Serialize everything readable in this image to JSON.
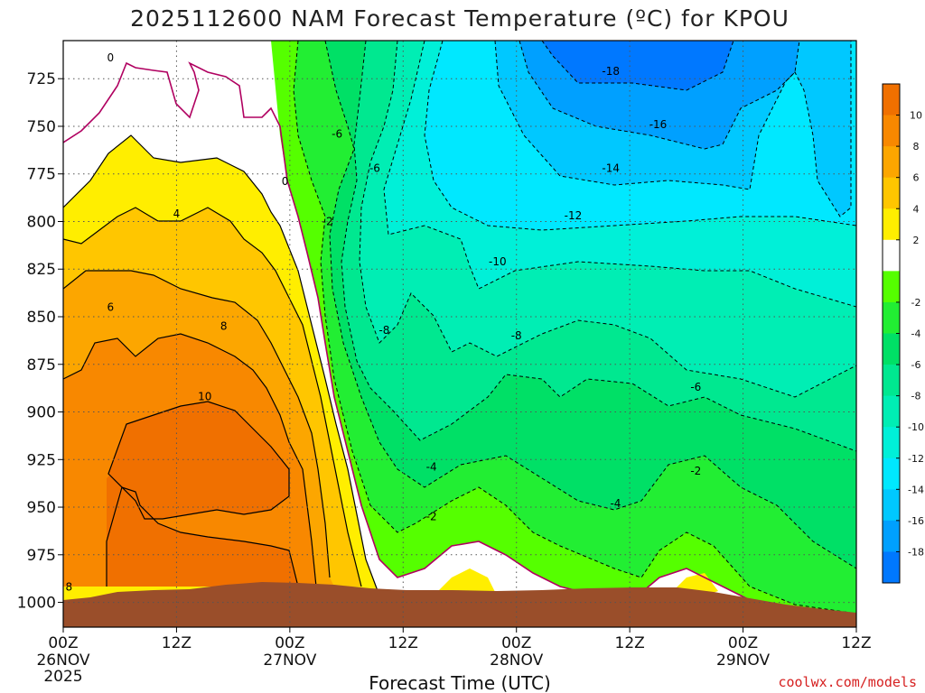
{
  "title": "2025112600 NAM Forecast Temperature (ºC) for KPOU",
  "credit": "coolwx.com/models",
  "colors": {
    "credit": "#d62020",
    "ground": "#9a4e2a",
    "zero_contour": "#b00060"
  },
  "chart_data": {
    "type": "heatmap",
    "title": "2025112600 NAM Forecast Temperature (ºC) for KPOU",
    "xlabel": "Forecast Time (UTC)",
    "ylabel": "",
    "x_ticks": [
      {
        "label": "00Z",
        "sub1": "26NOV",
        "sub2": "2025"
      },
      {
        "label": "12Z",
        "sub1": "",
        "sub2": ""
      },
      {
        "label": "00Z",
        "sub1": "27NOV",
        "sub2": ""
      },
      {
        "label": "12Z",
        "sub1": "",
        "sub2": ""
      },
      {
        "label": "00Z",
        "sub1": "28NOV",
        "sub2": ""
      },
      {
        "label": "12Z",
        "sub1": "",
        "sub2": ""
      },
      {
        "label": "00Z",
        "sub1": "29NOV",
        "sub2": ""
      },
      {
        "label": "12Z",
        "sub1": "",
        "sub2": ""
      }
    ],
    "y_ticks": [
      "725",
      "750",
      "775",
      "800",
      "825",
      "850",
      "875",
      "900",
      "925",
      "950",
      "975",
      "1000"
    ],
    "ylim": [
      1013,
      705
    ],
    "grid": true,
    "colorbar": {
      "levels": [
        {
          "label": "10",
          "color": "#f07000"
        },
        {
          "label": "8",
          "color": "#f88800"
        },
        {
          "label": "6",
          "color": "#fca600"
        },
        {
          "label": "4",
          "color": "#ffc600"
        },
        {
          "label": "2",
          "color": "#ffee00"
        },
        {
          "label": "",
          "color": "#ffffff"
        },
        {
          "label": "-2",
          "color": "#55ff00"
        },
        {
          "label": "-4",
          "color": "#22ee33"
        },
        {
          "label": "-6",
          "color": "#00e066"
        },
        {
          "label": "-8",
          "color": "#00e890"
        },
        {
          "label": "-10",
          "color": "#00eeb4"
        },
        {
          "label": "-12",
          "color": "#00f0d8"
        },
        {
          "label": "-14",
          "color": "#00e8ff"
        },
        {
          "label": "-16",
          "color": "#00c8ff"
        },
        {
          "label": "-18",
          "color": "#00a0ff"
        },
        {
          "label": "",
          "color": "#0078ff"
        }
      ]
    },
    "contour_labels": [
      {
        "text": "0",
        "t": 5,
        "p": 714
      },
      {
        "text": "0",
        "t": 23.5,
        "p": 779
      },
      {
        "text": "4",
        "t": 12,
        "p": 796
      },
      {
        "text": "6",
        "t": 5,
        "p": 845
      },
      {
        "text": "8",
        "t": 17,
        "p": 855
      },
      {
        "text": "10",
        "t": 15,
        "p": 892
      },
      {
        "text": "-6",
        "t": 29,
        "p": 754
      },
      {
        "text": "-6",
        "t": 33,
        "p": 772
      },
      {
        "text": "-2",
        "t": 28,
        "p": 800
      },
      {
        "text": "-12",
        "t": 54,
        "p": 797
      },
      {
        "text": "-14",
        "t": 58,
        "p": 772
      },
      {
        "text": "-16",
        "t": 63,
        "p": 749
      },
      {
        "text": "-18",
        "t": 58,
        "p": 721
      },
      {
        "text": "-10",
        "t": 46,
        "p": 821
      },
      {
        "text": "-8",
        "t": 34,
        "p": 857
      },
      {
        "text": "-8",
        "t": 48,
        "p": 860
      },
      {
        "text": "-6",
        "t": 67,
        "p": 887
      },
      {
        "text": "-4",
        "t": 39,
        "p": 929
      },
      {
        "text": "-2",
        "t": 39,
        "p": 955
      },
      {
        "text": "-4",
        "t": 58.5,
        "p": 948
      },
      {
        "text": "-2",
        "t": 67,
        "p": 931
      },
      {
        "text": "8",
        "t": 0.6,
        "p": 992
      }
    ]
  }
}
